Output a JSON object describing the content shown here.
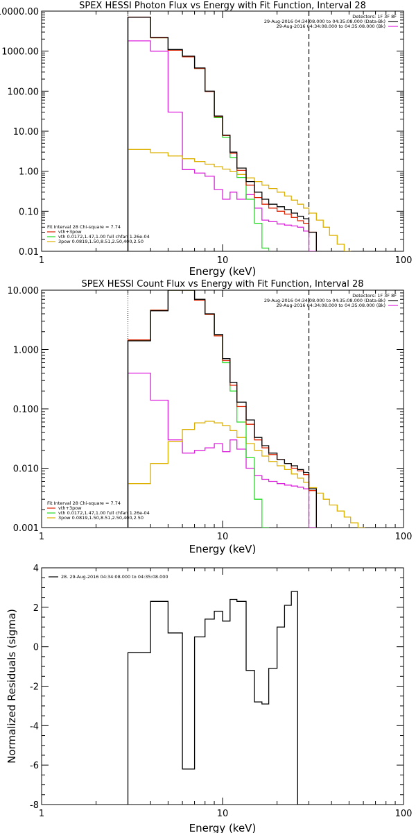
{
  "chart_data": [
    {
      "type": "line",
      "title": "SPEX HESSI Photon Flux vs Energy with Fit Function, Interval 28",
      "xlabel": "Energy (keV)",
      "ylabel": "",
      "xscale": "log",
      "yscale": "log",
      "xlim": [
        1,
        100
      ],
      "ylim": [
        0.01,
        10000
      ],
      "xticks": [
        "1",
        "10",
        "100"
      ],
      "yticks": [
        "0.01",
        "0.10",
        "1.00",
        "10.00",
        "100.00",
        "1000.00",
        "10000.00"
      ],
      "legend_top": {
        "placement": "top-right",
        "lines": [
          "Detectors: 1F 3F 8F",
          "29-Aug-2016 04:34:08.000 to 04:35:08.000 (Data-Bk)",
          "29-Aug-2016 04:34:08.000 to 04:35:08.000 (Bk)"
        ]
      },
      "legend_bottom": {
        "placement": "bottom-left",
        "lines": [
          "Fit Interval 28   Chi-square = 7.74",
          "vth+3pow",
          "vth 0.0172,1.47,1.00  full chfan 1.26e-04",
          "3pow 0.0819,1.50,8.51,2.50,400,2.50"
        ]
      },
      "vlines": [
        3,
        30
      ],
      "bin_edges": [
        3,
        4,
        5,
        6,
        7,
        8,
        9,
        10,
        11,
        12,
        13.5,
        15,
        16.5,
        18,
        20,
        22,
        24,
        26,
        28,
        30,
        33,
        36,
        39,
        43,
        47,
        51
      ],
      "series": [
        {
          "name": "Data-Bk",
          "color": "#000000",
          "values": [
            7000,
            2200,
            1100,
            750,
            380,
            100,
            24,
            8,
            3,
            1.2,
            0.55,
            0.3,
            0.2,
            0.15,
            0.13,
            0.11,
            0.09,
            0.075,
            0.065,
            0.03
          ]
        },
        {
          "name": "vth+3pow",
          "color": "#dd2200",
          "values": [
            7100,
            2150,
            1050,
            720,
            370,
            98,
            23,
            7.8,
            2.8,
            1.05,
            0.45,
            0.22,
            0.15,
            0.12,
            0.1,
            0.085,
            0.07,
            0.058,
            0.05,
            0.03
          ]
        },
        {
          "name": "vth",
          "color": "#22dd22",
          "values": [
            7100,
            2150,
            1050,
            720,
            370,
            98,
            22,
            7,
            2.2,
            0.7,
            0.2,
            0.05,
            0.012
          ]
        },
        {
          "name": "3pow",
          "color": "#ddb000",
          "values": [
            3.5,
            2.9,
            2.4,
            2.05,
            1.75,
            1.5,
            1.3,
            1.13,
            0.97,
            0.83,
            0.68,
            0.55,
            0.45,
            0.37,
            0.3,
            0.24,
            0.19,
            0.15,
            0.12,
            0.09,
            0.06,
            0.04,
            0.025,
            0.015,
            0.01
          ]
        },
        {
          "name": "Bk",
          "color": "#dd22dd",
          "values": [
            1800,
            1000,
            30,
            1.1,
            0.9,
            0.75,
            0.35,
            0.2,
            0.3,
            0.2,
            0.26,
            0.12,
            0.06,
            0.055,
            0.048,
            0.045,
            0.043,
            0.04,
            0.032,
            0.005
          ]
        }
      ]
    },
    {
      "type": "line",
      "title": "SPEX HESSI Count Flux vs Energy with Fit Function, Interval 28",
      "xlabel": "Energy (keV)",
      "ylabel": "",
      "xscale": "log",
      "yscale": "log",
      "xlim": [
        1,
        100
      ],
      "ylim": [
        0.001,
        10
      ],
      "xticks": [
        "1",
        "10",
        "100"
      ],
      "yticks": [
        "0.001",
        "0.010",
        "0.100",
        "1.000",
        "10.000"
      ],
      "legend_top": {
        "placement": "top-right",
        "lines": [
          "Detectors: 1F 3F 8F",
          "29-Aug-2016 04:34:08.000 to 04:35:08.000 (Data-Bk)",
          "29-Aug-2016 04:34:08.000 to 04:35:08.000 (Bk)"
        ]
      },
      "legend_bottom": {
        "placement": "bottom-left",
        "lines": [
          "Fit Interval 28   Chi-square = 7.74",
          "vth+3pow",
          "vth 0.0172,1.47,1.00  full chfan 1.26e-04",
          "3pow 0.0819,1.50,8.51,2.50,400,2.50"
        ]
      },
      "vlines": [
        3,
        30
      ],
      "bin_edges": [
        3,
        4,
        5,
        6,
        7,
        8,
        9,
        10,
        11,
        12,
        13.5,
        15,
        16.5,
        18,
        20,
        22,
        24,
        26,
        28,
        30,
        33,
        36,
        39,
        43,
        47,
        51,
        56,
        61
      ],
      "series": [
        {
          "name": "Data-Bk",
          "color": "#000000",
          "values": [
            1.4,
            4.5,
            10,
            10,
            7,
            4,
            1.8,
            0.7,
            0.28,
            0.13,
            0.065,
            0.033,
            0.024,
            0.018,
            0.014,
            0.012,
            0.011,
            0.0095,
            0.0085,
            0.0045
          ]
        },
        {
          "name": "vth+3pow",
          "color": "#dd2200",
          "values": [
            1.45,
            4.6,
            10.2,
            10.1,
            6.8,
            3.9,
            1.7,
            0.65,
            0.25,
            0.11,
            0.055,
            0.03,
            0.022,
            0.017,
            0.014,
            0.012,
            0.01,
            0.009,
            0.0078,
            0.0042
          ]
        },
        {
          "name": "vth",
          "color": "#22dd22",
          "values": [
            1.45,
            4.6,
            10.2,
            10.1,
            6.8,
            3.9,
            1.7,
            0.6,
            0.2,
            0.06,
            0.015,
            0.003,
            0.0008
          ]
        },
        {
          "name": "3pow",
          "color": "#ddb000",
          "values": [
            0.0055,
            0.012,
            0.028,
            0.045,
            0.058,
            0.062,
            0.058,
            0.052,
            0.043,
            0.033,
            0.026,
            0.02,
            0.016,
            0.013,
            0.011,
            0.0095,
            0.008,
            0.0068,
            0.0058,
            0.0047,
            0.0038,
            0.003,
            0.0024,
            0.0019,
            0.0015,
            0.0012,
            0.001
          ]
        },
        {
          "name": "Bk",
          "color": "#dd22dd",
          "values": [
            0.4,
            0.14,
            0.03,
            0.018,
            0.02,
            0.022,
            0.026,
            0.019,
            0.03,
            0.021,
            0.01,
            0.0075,
            0.0065,
            0.006,
            0.0055,
            0.0052,
            0.005,
            0.0048,
            0.0045,
            0.0008
          ]
        }
      ]
    },
    {
      "type": "line",
      "title": "",
      "xlabel": "Energy (keV)",
      "ylabel": "Normalized Residuals (sigma)",
      "xscale": "log",
      "yscale": "linear",
      "xlim": [
        1,
        100
      ],
      "ylim": [
        -8,
        4
      ],
      "xticks": [
        "1",
        "10",
        "100"
      ],
      "yticks": [
        "-8",
        "-6",
        "-4",
        "-2",
        "0",
        "2",
        "4"
      ],
      "legend_top": {
        "placement": "top-left",
        "lines": [
          "28. 29-Aug-2016 04:34:08.000 to 04:35:08.000"
        ]
      },
      "vlines": [],
      "bin_edges": [
        3,
        4,
        5,
        6,
        7,
        8,
        9,
        10,
        11,
        12,
        13.5,
        15,
        16.5,
        18,
        20,
        22,
        24,
        26,
        28,
        30
      ],
      "series": [
        {
          "name": "",
          "color": "#000000",
          "values": [
            -0.3,
            2.3,
            0.7,
            -6.2,
            0.5,
            1.4,
            1.8,
            1.3,
            2.4,
            2.3,
            -1.2,
            -2.8,
            -2.9,
            -1.1,
            1.0,
            2.1,
            2.8,
            -8.5,
            -8.5
          ]
        }
      ]
    }
  ]
}
